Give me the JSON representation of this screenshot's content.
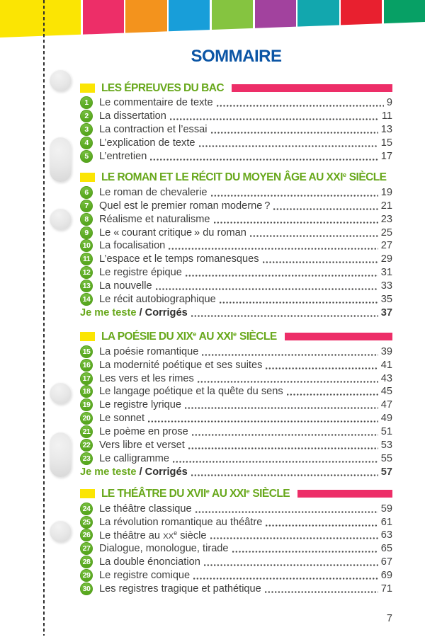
{
  "header": {
    "title": "SOMMAIRE"
  },
  "footer": {
    "page_number": "7"
  },
  "banner": {
    "stripes": [
      {
        "name": "yellow",
        "color": "#fbe503"
      },
      {
        "name": "pink",
        "color": "#ed2e68"
      },
      {
        "name": "orange",
        "color": "#f3931d"
      },
      {
        "name": "blue",
        "color": "#189ed9"
      },
      {
        "name": "light-green",
        "color": "#85c440"
      },
      {
        "name": "purple",
        "color": "#a2429e"
      },
      {
        "name": "teal",
        "color": "#12a7ae"
      },
      {
        "name": "red",
        "color": "#e8202f"
      },
      {
        "name": "green",
        "color": "#07a065"
      }
    ]
  },
  "colors": {
    "title_blue": "#0b55a5",
    "section_green": "#68a81c",
    "bar_pink": "#ed2e68",
    "square_yellow": "#fbe503",
    "circle_green_light": "#7cc244",
    "circle_green_dark": "#58a81f",
    "body_text": "#3d3d3c"
  },
  "sections": [
    {
      "title": [
        {
          "t": "LES ÉPREUVES DU BAC"
        }
      ],
      "bar": true,
      "entries": [
        {
          "num": "1",
          "label": "Le commentaire de texte",
          "page": "9"
        },
        {
          "num": "2",
          "label": "La dissertation",
          "page": "11"
        },
        {
          "num": "3",
          "label": "La contraction et l’essai",
          "page": "13"
        },
        {
          "num": "4",
          "label": "L’explication de texte",
          "page": "15"
        },
        {
          "num": "5",
          "label": "L’entretien",
          "page": "17"
        }
      ],
      "footer": null
    },
    {
      "title": [
        {
          "t": "LE ROMAN ET LE RÉCIT DU MOYEN ÂGE AU XXI"
        },
        {
          "t": "e",
          "sup": true
        },
        {
          "t": " SIÈCLE"
        }
      ],
      "bar": false,
      "entries": [
        {
          "num": "6",
          "label": "Le roman de chevalerie",
          "page": "19"
        },
        {
          "num": "7",
          "label": "Quel est le premier roman moderne ?",
          "page": "21"
        },
        {
          "num": "8",
          "label": "Réalisme et naturalisme",
          "page": "23"
        },
        {
          "num": "9",
          "label": "Le « courant critique » du roman",
          "page": "25"
        },
        {
          "num": "10",
          "label": "La focalisation",
          "page": "27"
        },
        {
          "num": "11",
          "label": "L’espace et le temps romanesques",
          "page": "29"
        },
        {
          "num": "12",
          "label": "Le registre épique",
          "page": "31"
        },
        {
          "num": "13",
          "label": "La nouvelle",
          "page": "33"
        },
        {
          "num": "14",
          "label": "Le récit autobiographique",
          "page": "35"
        }
      ],
      "footer": {
        "teste": "Je me teste",
        "rest": " / Corrigés",
        "page": "37"
      }
    },
    {
      "title": [
        {
          "t": "LA POÉSIE DU XIX"
        },
        {
          "t": "e",
          "sup": true
        },
        {
          "t": " AU XXI"
        },
        {
          "t": "e",
          "sup": true
        },
        {
          "t": " SIÈCLE"
        }
      ],
      "bar": true,
      "entries": [
        {
          "num": "15",
          "label": "La poésie romantique",
          "page": "39"
        },
        {
          "num": "16",
          "label": "La modernité poétique et ses suites",
          "page": "41"
        },
        {
          "num": "17",
          "label": "Les vers et les rimes",
          "page": "43"
        },
        {
          "num": "18",
          "label": "Le langage poétique et la quête du sens",
          "page": "45"
        },
        {
          "num": "19",
          "label": "Le registre lyrique",
          "page": "47"
        },
        {
          "num": "20",
          "label": "Le sonnet",
          "page": "49"
        },
        {
          "num": "21",
          "label": "Le poème en prose",
          "page": "51"
        },
        {
          "num": "22",
          "label": "Vers libre et verset",
          "page": "53"
        },
        {
          "num": "23",
          "label": "Le calligramme",
          "page": "55"
        }
      ],
      "footer": {
        "teste": "Je me teste",
        "rest": " / Corrigés",
        "page": "57"
      }
    },
    {
      "title": [
        {
          "t": "LE THÉÂTRE DU XVII"
        },
        {
          "t": "e",
          "sup": true
        },
        {
          "t": " AU XXI"
        },
        {
          "t": "e",
          "sup": true
        },
        {
          "t": " SIÈCLE"
        }
      ],
      "bar": true,
      "entries": [
        {
          "num": "24",
          "label": "Le théâtre classique",
          "page": "59"
        },
        {
          "num": "25",
          "label": "La révolution romantique au théâtre",
          "page": "61"
        },
        {
          "num": "26",
          "label": [
            {
              "t": "Le théâtre au "
            },
            {
              "t": "XX",
              "sc": true
            },
            {
              "t": "e",
              "sup": true
            },
            {
              "t": " siècle"
            }
          ],
          "page": "63"
        },
        {
          "num": "27",
          "label": "Dialogue, monologue, tirade",
          "page": "65"
        },
        {
          "num": "28",
          "label": "La double énonciation",
          "page": "67"
        },
        {
          "num": "29",
          "label": "Le registre comique",
          "page": "69"
        },
        {
          "num": "30",
          "label": "Les registres tragique et pathétique",
          "page": "71"
        }
      ],
      "footer": null
    }
  ]
}
